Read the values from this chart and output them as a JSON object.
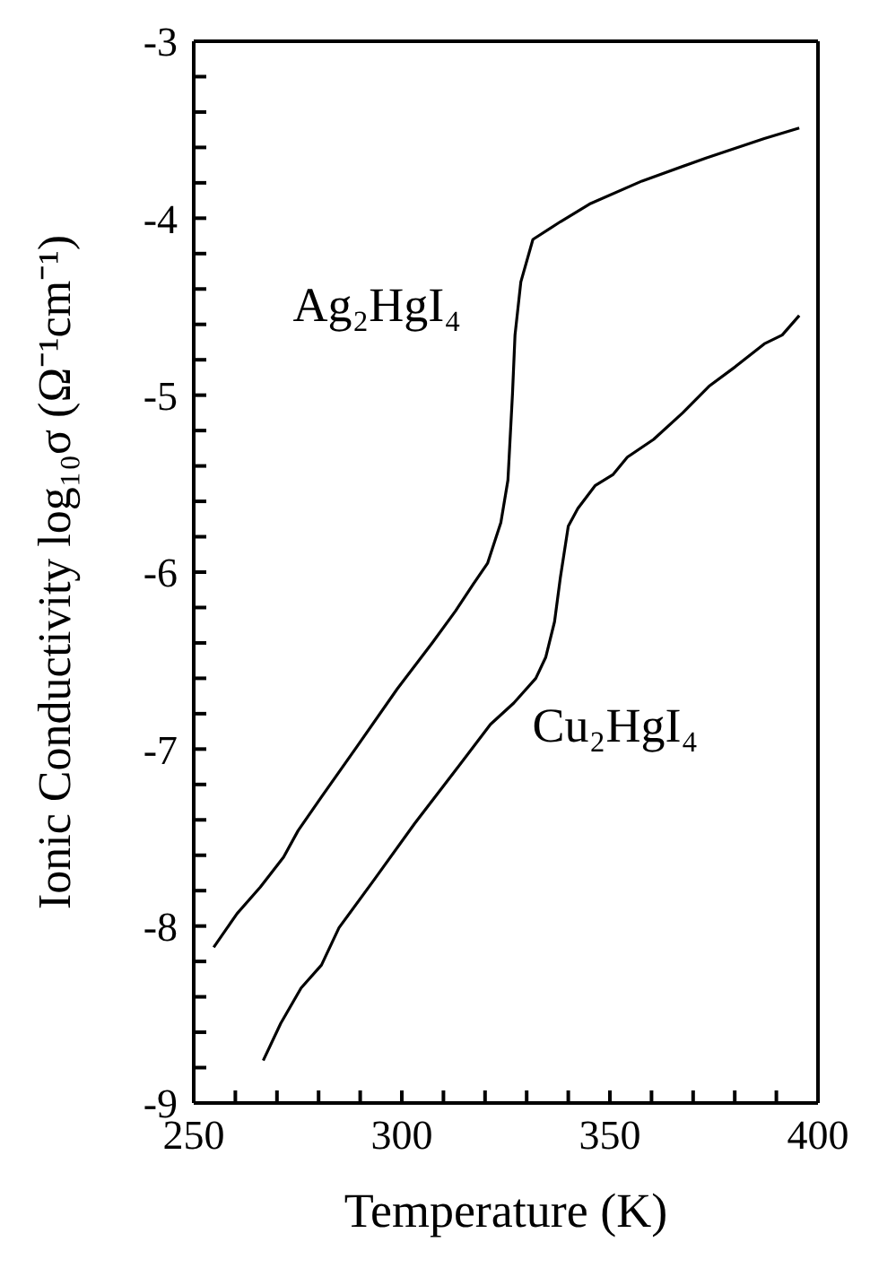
{
  "chart_data": {
    "type": "line",
    "xlabel": "Temperature (K)",
    "ylabel": "Ionic Conductivity log₁₀σ (Ω⁻¹cm⁻¹)",
    "xlim": [
      250,
      400
    ],
    "ylim": [
      -9,
      -3
    ],
    "xticks": [
      250,
      {
        "value": 260,
        "label": null
      },
      {
        "value": 270,
        "label": null
      },
      {
        "value": 280,
        "label": null
      },
      {
        "value": 290,
        "label": null
      },
      300,
      {
        "value": 310,
        "label": null
      },
      {
        "value": 320,
        "label": null
      },
      {
        "value": 330,
        "label": null
      },
      {
        "value": 340,
        "label": null
      },
      350,
      {
        "value": 360,
        "label": null
      },
      {
        "value": 370,
        "label": null
      },
      {
        "value": 380,
        "label": null
      },
      {
        "value": 390,
        "label": null
      },
      400
    ],
    "yticks": [
      -9,
      {
        "value": -8.8,
        "label": null
      },
      {
        "value": -8.6,
        "label": null
      },
      {
        "value": -8.4,
        "label": null
      },
      {
        "value": -8.2,
        "label": null
      },
      -8,
      {
        "value": -7.8,
        "label": null
      },
      {
        "value": -7.6,
        "label": null
      },
      {
        "value": -7.4,
        "label": null
      },
      {
        "value": -7.2,
        "label": null
      },
      -7,
      {
        "value": -6.8,
        "label": null
      },
      {
        "value": -6.6,
        "label": null
      },
      {
        "value": -6.4,
        "label": null
      },
      {
        "value": -6.2,
        "label": null
      },
      -6,
      {
        "value": -5.8,
        "label": null
      },
      {
        "value": -5.6,
        "label": null
      },
      {
        "value": -5.4,
        "label": null
      },
      {
        "value": -5.2,
        "label": null
      },
      -5,
      {
        "value": -4.8,
        "label": null
      },
      {
        "value": -4.6,
        "label": null
      },
      {
        "value": -4.4,
        "label": null
      },
      {
        "value": -4.2,
        "label": null
      },
      -4,
      {
        "value": -3.8,
        "label": null
      },
      {
        "value": -3.6,
        "label": null
      },
      {
        "value": -3.4,
        "label": null
      },
      {
        "value": -3.2,
        "label": null
      },
      -3
    ],
    "grid": false,
    "legend": false,
    "marker": "none",
    "line_style": "solid",
    "series": [
      {
        "name": "Ag₂HgI₄",
        "color": "#000000",
        "x": [
          254.8,
          260.4,
          266,
          271.6,
          275.1,
          280.7,
          289.1,
          298.9,
          307.3,
          312.9,
          317.1,
          320.6,
          323.8,
          325.5,
          326.6,
          327.2,
          328.6,
          331.5,
          338.1,
          345.1,
          357.7,
          373.1,
          387.1,
          395.5
        ],
        "values": [
          -8.12,
          -7.93,
          -7.78,
          -7.61,
          -7.46,
          -7.27,
          -6.99,
          -6.66,
          -6.4,
          -6.22,
          -6.07,
          -5.95,
          -5.72,
          -5.48,
          -4.99,
          -4.66,
          -4.36,
          -4.12,
          -4.02,
          -3.92,
          -3.79,
          -3.66,
          -3.55,
          -3.49
        ]
      },
      {
        "name": "Cu₂HgI₄",
        "color": "#000000",
        "x": [
          266.7,
          270.9,
          275.8,
          280.7,
          284.9,
          293.3,
          303.1,
          312.9,
          321.3,
          326.9,
          332.2,
          334.6,
          336.7,
          338.1,
          340,
          342.3,
          346.5,
          350.7,
          354.2,
          360.5,
          367.5,
          373.8,
          380.1,
          387.1,
          391.4,
          395.5
        ],
        "values": [
          -8.76,
          -8.55,
          -8.35,
          -8.22,
          -8.01,
          -7.74,
          -7.42,
          -7.12,
          -6.86,
          -6.74,
          -6.6,
          -6.48,
          -6.28,
          -6.03,
          -5.74,
          -5.64,
          -5.51,
          -5.45,
          -5.35,
          -5.25,
          -5.1,
          -4.95,
          -4.84,
          -4.71,
          -4.66,
          -4.55
        ]
      }
    ]
  }
}
